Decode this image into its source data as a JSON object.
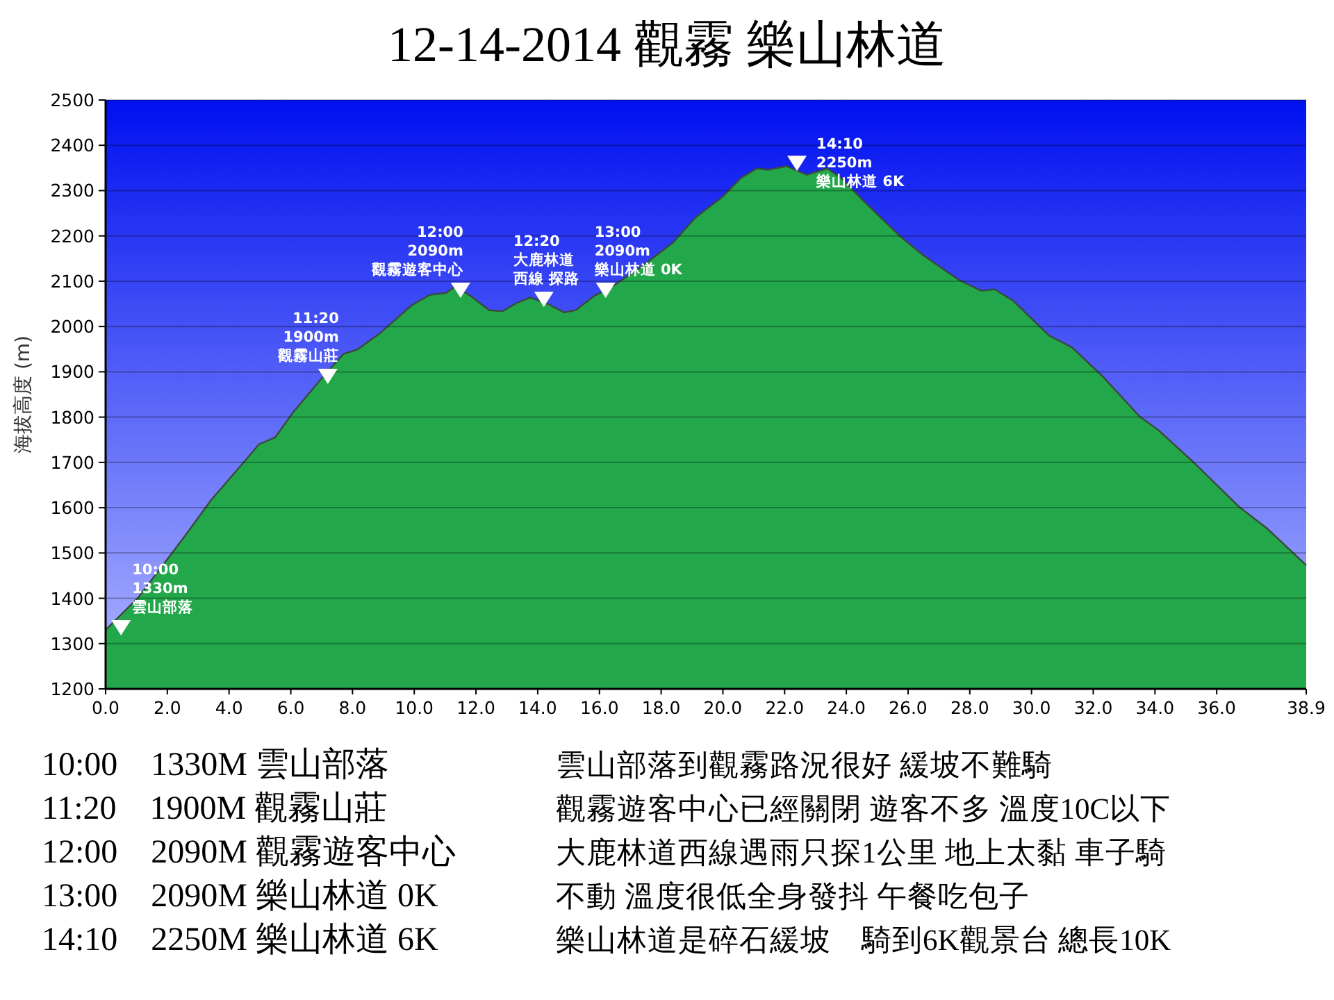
{
  "chart_data": {
    "type": "area",
    "title": "12-14-2014 觀霧 樂山林道",
    "ylabel": "海拔高度 (m)",
    "x": [
      0,
      1.06,
      2.54,
      3.42,
      4.46,
      4.97,
      5.49,
      6.08,
      6.97,
      7.7,
      8.15,
      8.89,
      9.92,
      10.51,
      11.03,
      11.32,
      11.84,
      12.43,
      12.87,
      13.32,
      13.76,
      14.35,
      14.86,
      15.23,
      15.82,
      16.41,
      17.3,
      18.38,
      19.12,
      20.0,
      20.59,
      21.1,
      21.47,
      22.06,
      22.72,
      23.38,
      23.83,
      24.56,
      25.73,
      26.46,
      27.64,
      28.37,
      28.81,
      29.4,
      30.57,
      31.31,
      32.33,
      33.51,
      34.1,
      35.27,
      36.74,
      37.62,
      38.9
    ],
    "series": [
      {
        "type": "scatter",
        "color": "#ffffff",
        "marker": "triangle",
        "x": [
          0.5,
          7.2,
          11.5,
          14.2,
          16.2,
          22.4
        ],
        "values": [
          1335,
          1890,
          2080,
          2060,
          2080,
          2360
        ]
      },
      {
        "color": "#22a84a",
        "values": [
          1330,
          1402,
          1535,
          1617,
          1699,
          1740,
          1755,
          1811,
          1883,
          1939,
          1949,
          1985,
          2047,
          2070,
          2074,
          2088,
          2067,
          2036,
          2034,
          2052,
          2064,
          2049,
          2031,
          2036,
          2067,
          2088,
          2129,
          2185,
          2241,
          2287,
          2328,
          2349,
          2346,
          2354,
          2335,
          2349,
          2328,
          2277,
          2200,
          2159,
          2103,
          2079,
          2082,
          2057,
          1980,
          1954,
          1888,
          1801,
          1772,
          1699,
          1601,
          1555,
          1473
        ]
      }
    ],
    "xlim": [
      0,
      38.9
    ],
    "ylim": [
      1200,
      2500
    ],
    "xticks": [
      {
        "value": 0,
        "label": "0.0"
      },
      {
        "value": 2,
        "label": "2.0"
      },
      {
        "value": 4,
        "label": "4.0"
      },
      {
        "value": 6,
        "label": "6.0"
      },
      {
        "value": 8,
        "label": "8.0"
      },
      {
        "value": 10,
        "label": "10.0"
      },
      {
        "value": 12,
        "label": "12.0"
      },
      {
        "value": 14,
        "label": "14.0"
      },
      {
        "value": 16,
        "label": "16.0"
      },
      {
        "value": 18,
        "label": "18.0"
      },
      {
        "value": 20,
        "label": "20.0"
      },
      {
        "value": 22,
        "label": "22.0"
      },
      {
        "value": 24,
        "label": "24.0"
      },
      {
        "value": 26,
        "label": "26.0"
      },
      {
        "value": 28,
        "label": "28.0"
      },
      {
        "value": 30,
        "label": "30.0"
      },
      {
        "value": 32,
        "label": "32.0"
      },
      {
        "value": 34,
        "label": "34.0"
      },
      {
        "value": 36,
        "label": "36.0"
      },
      {
        "value": 38.9,
        "label": "38.9"
      }
    ],
    "yticks": [
      1200,
      1300,
      1400,
      1500,
      1600,
      1700,
      1800,
      1900,
      2000,
      2100,
      2200,
      2300,
      2400,
      2500
    ],
    "grid": "y",
    "annotations": [
      "10:00",
      "1330m",
      {
        "text": "雲山部落",
        "x": 0.5,
        "y": 1335
      },
      "11:20",
      "1900m",
      {
        "text": "觀霧山莊",
        "x": 7.2,
        "y": 1890
      },
      "12:00",
      "2090m",
      {
        "text": "觀霧遊客中心",
        "x": 11.5,
        "y": 2080
      },
      "12:20",
      "大鹿林道",
      {
        "text": "西線 探路",
        "x": 14.2,
        "y": 2060
      },
      "13:00",
      "2090m",
      {
        "text": "樂山林道 0K",
        "x": 16.2,
        "y": 2080
      },
      "14:10",
      "2250m",
      {
        "text": "樂山林道 6K",
        "x": 22.4,
        "y": 2360
      },
      "10:00　1330M 雲山部落",
      "11:20　1900M 觀霧山莊",
      "12:00　2090M 觀霧遊客中心",
      "13:00　2090M 樂山林道 0K",
      "14:10　2250M 樂山林道 6K",
      "雲山部落到觀霧路況很好 緩坡不難騎",
      "觀霧遊客中心已經關閉 遊客不多 溫度10C以下",
      "大鹿林道西線遇雨只探1公里 地上太黏 車子騎",
      "不動 溫度很低全身發抖 午餐吃包子",
      "樂山林道是碎石緩坡　騎到6K觀景台 總長10K"
    ]
  }
}
